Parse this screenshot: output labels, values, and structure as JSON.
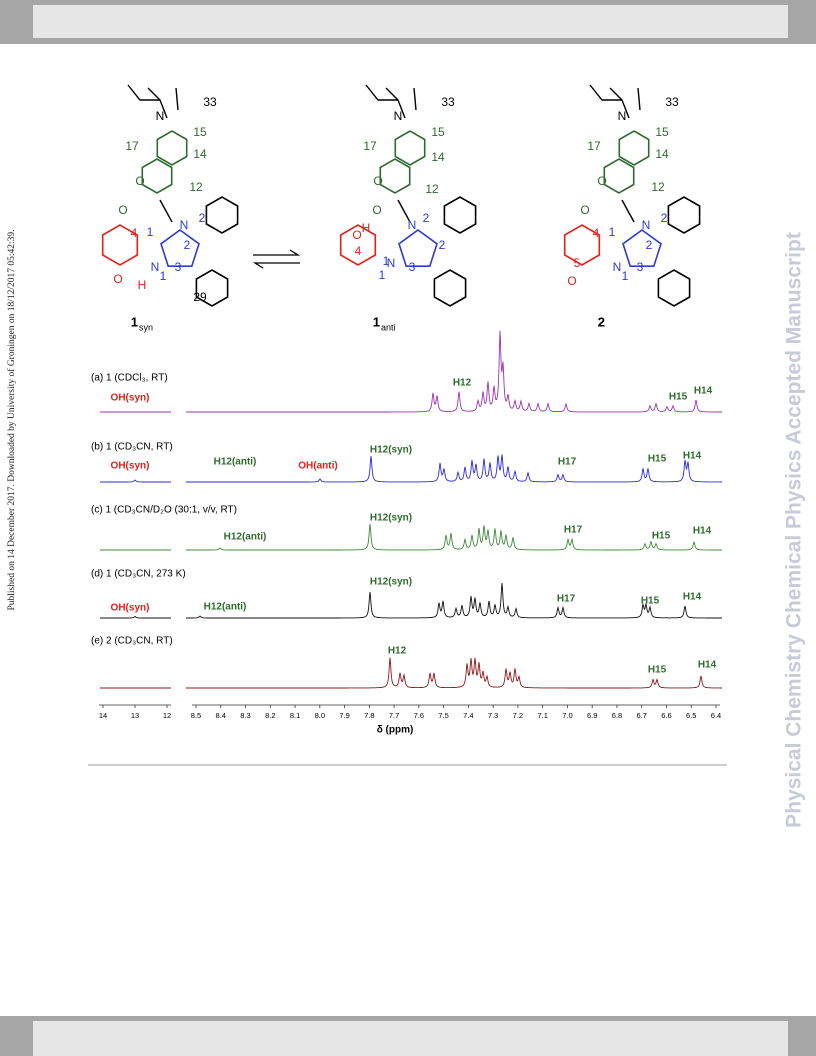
{
  "side_note": "Published on 14 December 2017. Downloaded by University of Groningen on 18/12/2017 05:42:39.",
  "watermark": "Physical Chemistry Chemical Physics Accepted Manuscript",
  "figure": {
    "structures": [
      {
        "number": "1",
        "subscript": "syn",
        "labels": [
          "33",
          "N",
          "15",
          "17",
          "14",
          "O",
          "12",
          "O",
          "N",
          "2",
          "1",
          "4",
          "2",
          "N",
          "1",
          "3",
          "O",
          "H",
          "29"
        ]
      },
      {
        "number": "1",
        "subscript": "anti",
        "labels": [
          "33",
          "N",
          "15",
          "17",
          "14",
          "O",
          "12",
          "O",
          "N",
          "2",
          "2",
          "1",
          "4",
          "N",
          "1",
          "3",
          "O",
          "H"
        ]
      },
      {
        "number": "2",
        "subscript": "",
        "labels": [
          "33",
          "N",
          "15",
          "17",
          "14",
          "O",
          "12",
          "O",
          "N",
          "2",
          "1",
          "4",
          "2",
          "5",
          "N",
          "1",
          "3",
          "O"
        ]
      }
    ],
    "spectra": [
      {
        "label": "(a) 1 (CDCl₃, RT)",
        "peaks": [
          "OH(syn)",
          "H12",
          "H15",
          "H14"
        ]
      },
      {
        "label": "(b) 1 (CD₃CN, RT)",
        "peaks": [
          "OH(syn)",
          "H12(anti)",
          "OH(anti)",
          "H12(syn)",
          "H17",
          "H15",
          "H14"
        ]
      },
      {
        "label": "(c) 1 (CD₃CN/D₂O (30:1, v/v, RT)",
        "peaks": [
          "H12(anti)",
          "H12(syn)",
          "H17",
          "H15",
          "H14"
        ]
      },
      {
        "label": "(d) 1 (CD₃CN, 273 K)",
        "peaks": [
          "OH(syn)",
          "H12(anti)",
          "H12(syn)",
          "H17",
          "H15",
          "H14"
        ]
      },
      {
        "label": "(e) 2 (CD₃CN, RT)",
        "peaks": [
          "H12",
          "H15",
          "H14"
        ]
      }
    ],
    "x_axis": {
      "label": "δ (ppm)",
      "ticks_left": [
        14,
        13,
        12
      ],
      "ticks_right": [
        8.5,
        8.4,
        8.3,
        8.2,
        8.1,
        {
          "value": 8,
          "label": "8.0"
        },
        7.9,
        7.8,
        7.7,
        7.6,
        7.5,
        7.4,
        7.3,
        7.2,
        7.1,
        {
          "value": 7,
          "label": "7.0"
        },
        6.9,
        6.8,
        6.7,
        6.6,
        6.5,
        6.4
      ]
    }
  }
}
